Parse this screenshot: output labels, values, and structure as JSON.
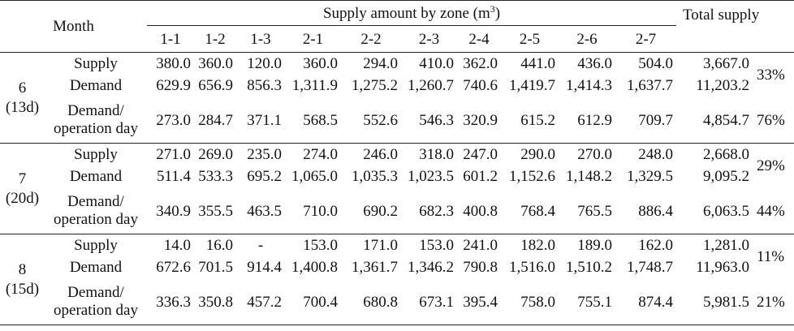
{
  "header": {
    "month_label": "Month",
    "zone_title_prefix": "Supply amount by zone (m",
    "zone_title_sup": "3",
    "zone_title_suffix": ")",
    "total_label": "Total supply",
    "zones": [
      "1-1",
      "1-2",
      "1-3",
      "2-1",
      "2-2",
      "2-3",
      "2-4",
      "2-5",
      "2-6",
      "2-7"
    ]
  },
  "groups": [
    {
      "month": "6",
      "days": "(13d)",
      "rows": [
        {
          "label": "Supply",
          "values": [
            "380.0",
            "360.0",
            "120.0",
            "360.0",
            "294.0",
            "410.0",
            "362.0",
            "441.0",
            "436.0",
            "504.0"
          ],
          "total": "3,667.0"
        },
        {
          "label": "Demand",
          "values": [
            "629.9",
            "656.9",
            "856.3",
            "1,311.9",
            "1,275.2",
            "1,260.7",
            "740.6",
            "1,419.7",
            "1,414.3",
            "1,637.7"
          ],
          "total": "11,203.2"
        },
        {
          "label_line1": "Demand/",
          "label_line2": "operation day",
          "values": [
            "273.0",
            "284.7",
            "371.1",
            "568.5",
            "552.6",
            "546.3",
            "320.9",
            "615.2",
            "612.9",
            "709.7"
          ],
          "total": "4,854.7",
          "pct": "76%"
        }
      ],
      "supply_pct": "33%"
    },
    {
      "month": "7",
      "days": "(20d)",
      "rows": [
        {
          "label": "Supply",
          "values": [
            "271.0",
            "269.0",
            "235.0",
            "274.0",
            "246.0",
            "318.0",
            "247.0",
            "290.0",
            "270.0",
            "248.0"
          ],
          "total": "2,668.0"
        },
        {
          "label": "Demand",
          "values": [
            "511.4",
            "533.3",
            "695.2",
            "1,065.0",
            "1,035.3",
            "1,023.5",
            "601.2",
            "1,152.6",
            "1,148.2",
            "1,329.5"
          ],
          "total": "9,095.2"
        },
        {
          "label_line1": "Demand/",
          "label_line2": "operation day",
          "values": [
            "340.9",
            "355.5",
            "463.5",
            "710.0",
            "690.2",
            "682.3",
            "400.8",
            "768.4",
            "765.5",
            "886.4"
          ],
          "total": "6,063.5",
          "pct": "44%"
        }
      ],
      "supply_pct": "29%"
    },
    {
      "month": "8",
      "days": "(15d)",
      "rows": [
        {
          "label": "Supply",
          "values": [
            "14.0",
            "16.0",
            "-",
            "153.0",
            "171.0",
            "153.0",
            "241.0",
            "182.0",
            "189.0",
            "162.0"
          ],
          "total": "1,281.0"
        },
        {
          "label": "Demand",
          "values": [
            "672.6",
            "701.5",
            "914.4",
            "1,400.8",
            "1,361.7",
            "1,346.2",
            "790.8",
            "1,516.0",
            "1,510.2",
            "1,748.7"
          ],
          "total": "11,963.0"
        },
        {
          "label_line1": "Demand/",
          "label_line2": "operation day",
          "values": [
            "336.3",
            "350.8",
            "457.2",
            "700.4",
            "680.8",
            "673.1",
            "395.4",
            "758.0",
            "755.1",
            "874.4"
          ],
          "total": "5,981.5",
          "pct": "21%"
        }
      ],
      "supply_pct": "11%"
    }
  ]
}
